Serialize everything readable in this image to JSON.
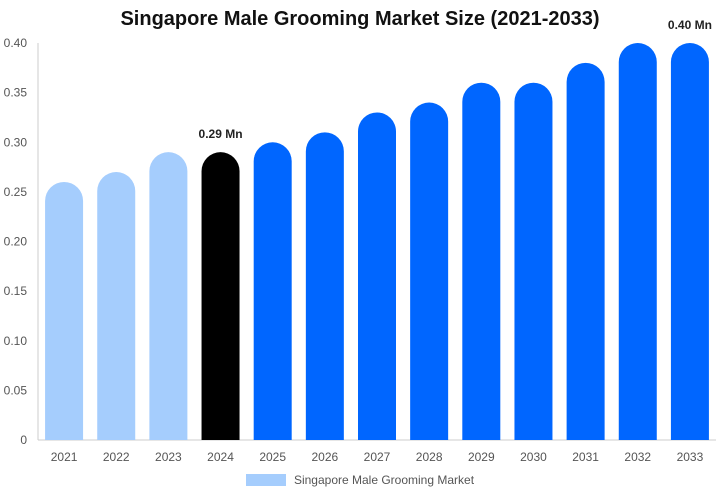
{
  "chart_data": {
    "type": "bar",
    "title": "Singapore Male Grooming Market Size (2021-2033)",
    "categories": [
      "2021",
      "2022",
      "2023",
      "2024",
      "2025",
      "2026",
      "2027",
      "2028",
      "2029",
      "2030",
      "2031",
      "2032",
      "2033"
    ],
    "series": [
      {
        "name": "Singapore Male Grooming Market",
        "values": [
          0.26,
          0.27,
          0.29,
          0.29,
          0.3,
          0.31,
          0.33,
          0.34,
          0.36,
          0.36,
          0.38,
          0.4,
          0.4
        ]
      }
    ],
    "ylim": [
      0,
      0.4
    ],
    "yticks": [
      "0",
      "0.05",
      "0.10",
      "0.15",
      "0.20",
      "0.25",
      "0.30",
      "0.35",
      "0.40"
    ],
    "data_labels": [
      {
        "category": "2024",
        "text": "0.29 Mn"
      },
      {
        "category": "2033",
        "text": "0.40 Mn"
      }
    ],
    "bar_colors": {
      "historical": "#a5cdfd",
      "current": "#000000",
      "forecast": "#0066ff"
    },
    "bar_color_by_category": [
      "historical",
      "historical",
      "historical",
      "current",
      "forecast",
      "forecast",
      "forecast",
      "forecast",
      "forecast",
      "forecast",
      "forecast",
      "forecast",
      "forecast"
    ],
    "legend": {
      "position": "bottom",
      "color": "#a5cdfd"
    },
    "grid": false
  }
}
